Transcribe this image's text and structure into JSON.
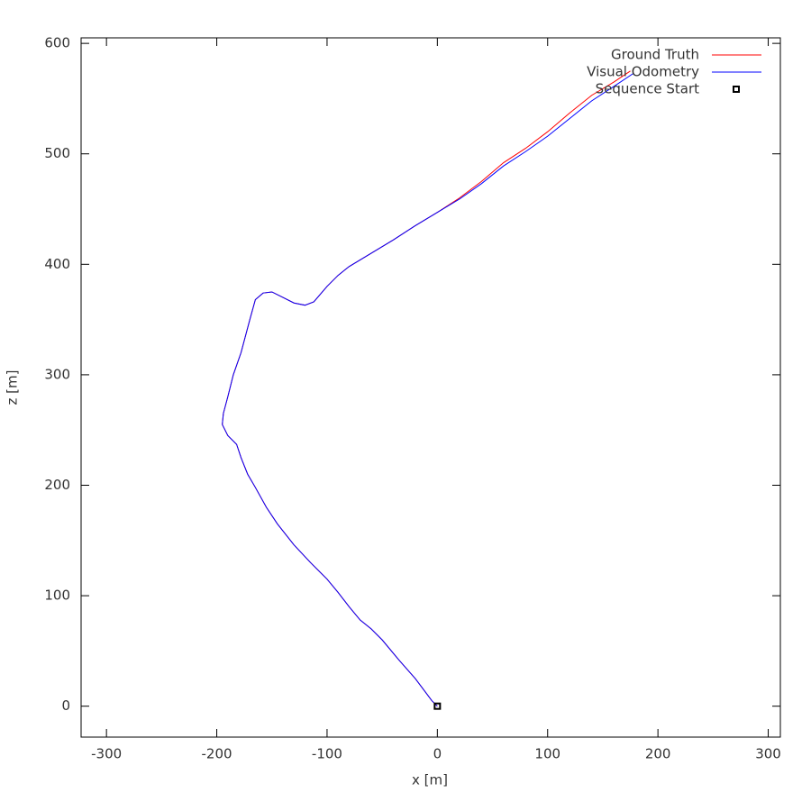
{
  "chart_data": {
    "type": "line",
    "xlabel": "x [m]",
    "ylabel": "z [m]",
    "xlim": [
      -323,
      311
    ],
    "ylim": [
      -28,
      605
    ],
    "xticks": [
      -300,
      -200,
      -100,
      0,
      100,
      200,
      300
    ],
    "yticks": [
      0,
      100,
      200,
      300,
      400,
      500,
      600
    ],
    "grid": false,
    "legend": "top right",
    "series": [
      {
        "name": "Ground Truth",
        "color": "#ff0000",
        "x": [
          0,
          -5,
          -20,
          -35,
          -50,
          -60,
          -70,
          -80,
          -90,
          -100,
          -115,
          -130,
          -145,
          -155,
          -165,
          -172,
          -178,
          -182,
          -190,
          -195,
          -194,
          -190,
          -185,
          -178,
          -170,
          -165,
          -158,
          -150,
          -140,
          -130,
          -120,
          -112,
          -100,
          -90,
          -80,
          -60,
          -40,
          -20,
          0,
          20,
          40,
          60,
          80,
          100,
          120,
          140,
          160,
          175
        ],
        "values": [
          0,
          5,
          25,
          42,
          60,
          70,
          78,
          90,
          103,
          115,
          130,
          146,
          165,
          180,
          198,
          210,
          225,
          237,
          245,
          255,
          265,
          280,
          300,
          320,
          350,
          368,
          374,
          375,
          370,
          365,
          363,
          366,
          380,
          390,
          398,
          410,
          422,
          435,
          447,
          460,
          475,
          492,
          505,
          520,
          537,
          553,
          565,
          575
        ]
      },
      {
        "name": "Visual Odometry",
        "color": "#0000ff",
        "x": [
          0,
          -5,
          -20,
          -35,
          -50,
          -60,
          -70,
          -80,
          -90,
          -100,
          -115,
          -130,
          -145,
          -155,
          -165,
          -172,
          -178,
          -182,
          -190,
          -195,
          -194,
          -190,
          -185,
          -178,
          -170,
          -165,
          -158,
          -150,
          -140,
          -130,
          -120,
          -112,
          -100,
          -90,
          -80,
          -60,
          -40,
          -20,
          0,
          20,
          40,
          60,
          80,
          100,
          120,
          140,
          160,
          178
        ],
        "values": [
          0,
          5,
          25,
          42,
          60,
          70,
          78,
          90,
          103,
          115,
          130,
          146,
          165,
          180,
          198,
          210,
          225,
          237,
          245,
          255,
          265,
          280,
          300,
          320,
          350,
          368,
          374,
          375,
          370,
          365,
          363,
          366,
          380,
          390,
          398,
          410,
          422,
          435,
          447,
          459,
          473,
          489,
          502,
          516,
          532,
          548,
          561,
          573
        ]
      },
      {
        "name": "Sequence Start",
        "color": "#000000",
        "marker": "square",
        "x": [
          0
        ],
        "values": [
          0
        ]
      }
    ]
  }
}
